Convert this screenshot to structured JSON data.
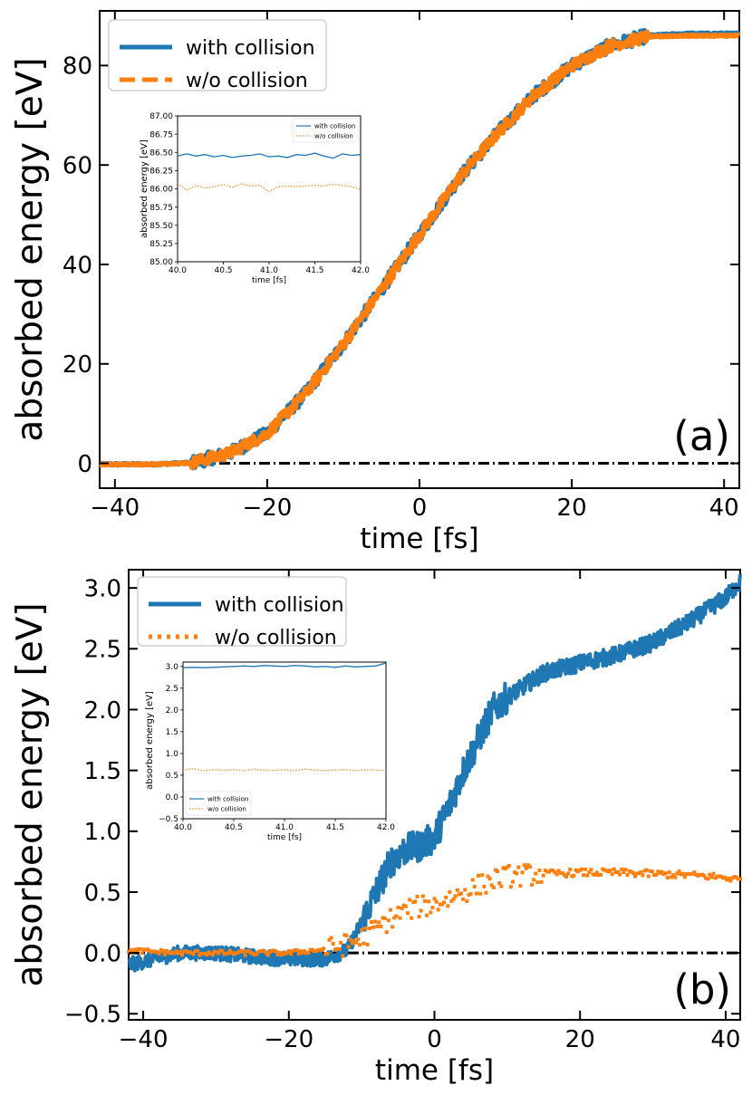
{
  "chart_data": [
    {
      "panel": "(a)",
      "type": "line",
      "xlabel": "time [fs]",
      "ylabel": "absorbed energy [eV]",
      "xlim": [
        -42,
        42
      ],
      "ylim": [
        -5,
        91
      ],
      "xticks": [
        -40,
        -20,
        0,
        20,
        40
      ],
      "xtick_labels": [
        "−40",
        "−20",
        "0",
        "20",
        "40"
      ],
      "yticks": [
        0,
        20,
        40,
        60,
        80
      ],
      "ytick_labels": [
        "0",
        "20",
        "40",
        "60",
        "80"
      ],
      "legend_position": "top-left",
      "series": [
        {
          "name": "with collision",
          "color": "#1f77b4",
          "style": "solid",
          "x": [
            -42,
            -35,
            -30,
            -25,
            -20,
            -15,
            -10,
            -5,
            0,
            5,
            10,
            15,
            20,
            25,
            30,
            35,
            42
          ],
          "y": [
            -0.2,
            -0.2,
            0.1,
            2,
            6,
            14,
            24,
            35,
            46,
            57,
            66,
            74,
            80,
            84,
            86,
            86.4,
            86.4
          ]
        },
        {
          "name": "w/o collision",
          "color": "#ff7f0e",
          "style": "dashed",
          "x": [
            -42,
            -35,
            -30,
            -25,
            -20,
            -15,
            -10,
            -5,
            0,
            5,
            10,
            15,
            20,
            25,
            30,
            35,
            42
          ],
          "y": [
            -0.2,
            -0.2,
            0.1,
            2,
            6,
            14,
            24,
            35,
            46,
            57,
            66,
            74,
            80,
            84,
            85.8,
            86,
            86
          ]
        }
      ],
      "reference_line": {
        "y": 0,
        "style": "dash-dot",
        "color": "#000000"
      },
      "inset": {
        "type": "line",
        "xlabel": "time [fs]",
        "ylabel": "absorbed energy [eV]",
        "xlim": [
          40,
          42
        ],
        "ylim": [
          85,
          87
        ],
        "xtick_labels": [
          "40.0",
          "40.5",
          "41.0",
          "41.5",
          "42.0"
        ],
        "ytick_labels": [
          "85.00",
          "85.25",
          "85.50",
          "85.75",
          "86.00",
          "86.25",
          "86.50",
          "86.75",
          "87.00"
        ],
        "legend_position": "top-right",
        "series": [
          {
            "name": "with collision",
            "color": "#1f77b4",
            "style": "solid",
            "x": [
              40.0,
              40.1,
              40.2,
              40.3,
              40.4,
              40.5,
              40.6,
              40.7,
              40.8,
              40.9,
              41.0,
              41.1,
              41.2,
              41.3,
              41.4,
              41.5,
              41.6,
              41.7,
              41.8,
              41.9,
              42.0
            ],
            "y": [
              86.45,
              86.48,
              86.45,
              86.47,
              86.44,
              86.46,
              86.43,
              86.45,
              86.46,
              86.48,
              86.44,
              86.45,
              86.43,
              86.47,
              86.46,
              86.49,
              86.45,
              86.42,
              86.48,
              86.46,
              86.47
            ]
          },
          {
            "name": "w/o collision",
            "color": "#ff7f0e",
            "style": "dotted",
            "x": [
              40.0,
              40.1,
              40.2,
              40.3,
              40.4,
              40.5,
              40.6,
              40.7,
              40.8,
              40.9,
              41.0,
              41.1,
              41.2,
              41.3,
              41.4,
              41.5,
              41.6,
              41.7,
              41.8,
              41.9,
              42.0
            ],
            "y": [
              86.08,
              85.98,
              86.05,
              86.01,
              86.03,
              86.06,
              86.02,
              86.07,
              86.04,
              86.05,
              85.96,
              86.03,
              86.04,
              86.03,
              86.04,
              86.05,
              86.04,
              86.06,
              86.05,
              86.03,
              85.99
            ]
          }
        ]
      }
    },
    {
      "panel": "(b)",
      "type": "line",
      "xlabel": "time [fs]",
      "ylabel": "absorbed energy [eV]",
      "xlim": [
        -42,
        42
      ],
      "ylim": [
        -0.55,
        3.15
      ],
      "xticks": [
        -40,
        -20,
        0,
        20,
        40
      ],
      "xtick_labels": [
        "−40",
        "−20",
        "0",
        "20",
        "40"
      ],
      "yticks": [
        -0.5,
        0,
        0.5,
        1,
        1.5,
        2,
        2.5,
        3
      ],
      "ytick_labels": [
        "−0.5",
        "0.0",
        "0.5",
        "1.0",
        "1.5",
        "2.0",
        "2.5",
        "3.0"
      ],
      "legend_position": "top-left",
      "series": [
        {
          "name": "with collision",
          "color": "#1f77b4",
          "style": "solid",
          "x": [
            -42,
            -35,
            -30,
            -25,
            -20,
            -15,
            -12,
            -10,
            -8,
            -6,
            -4,
            -2,
            0,
            2,
            4,
            6,
            8,
            10,
            15,
            20,
            25,
            30,
            35,
            40,
            42
          ],
          "y": [
            -0.1,
            0.0,
            0.0,
            -0.03,
            -0.05,
            -0.05,
            0.02,
            0.25,
            0.5,
            0.75,
            0.85,
            0.88,
            0.95,
            1.2,
            1.5,
            1.75,
            2.0,
            2.1,
            2.3,
            2.38,
            2.45,
            2.55,
            2.72,
            2.92,
            3.05
          ]
        },
        {
          "name": "w/o collision",
          "color": "#ff7f0e",
          "style": "dotted",
          "x": [
            -42,
            -35,
            -30,
            -25,
            -20,
            -15,
            -12,
            -10,
            -8,
            -6,
            -4,
            -2,
            0,
            2,
            4,
            6,
            8,
            10,
            15,
            20,
            25,
            30,
            35,
            40,
            42
          ],
          "y": [
            0.02,
            0.0,
            0.0,
            0.0,
            0.0,
            0.03,
            0.07,
            0.12,
            0.2,
            0.28,
            0.35,
            0.38,
            0.4,
            0.45,
            0.5,
            0.55,
            0.6,
            0.63,
            0.65,
            0.66,
            0.66,
            0.65,
            0.64,
            0.62,
            0.6
          ]
        }
      ],
      "reference_line": {
        "y": 0,
        "style": "dash-dot",
        "color": "#000000"
      },
      "inset": {
        "type": "line",
        "xlabel": "time [fs]",
        "ylabel": "absorbed energy [eV]",
        "xlim": [
          40,
          42
        ],
        "ylim": [
          -0.5,
          3.1
        ],
        "xtick_labels": [
          "40.0",
          "40.5",
          "41.0",
          "41.5",
          "42.0"
        ],
        "ytick_labels": [
          "−0.5",
          "0.0",
          "0.5",
          "1.0",
          "1.5",
          "2.0",
          "2.5",
          "3.0"
        ],
        "legend_position": "bottom-left",
        "series": [
          {
            "name": "with collision",
            "color": "#1f77b4",
            "style": "solid",
            "x": [
              40.0,
              40.1,
              40.2,
              40.3,
              40.4,
              40.5,
              40.6,
              40.7,
              40.8,
              40.9,
              41.0,
              41.1,
              41.2,
              41.3,
              41.4,
              41.5,
              41.6,
              41.7,
              41.8,
              41.9,
              42.0
            ],
            "y": [
              2.97,
              2.98,
              2.97,
              2.98,
              2.99,
              3.0,
              3.01,
              3.0,
              3.02,
              3.01,
              3.0,
              3.02,
              3.01,
              2.99,
              3.0,
              2.98,
              3.01,
              2.99,
              3.0,
              3.01,
              3.08
            ]
          },
          {
            "name": "w/o collision",
            "color": "#ff7f0e",
            "style": "dotted",
            "x": [
              40.0,
              40.1,
              40.2,
              40.3,
              40.4,
              40.5,
              40.6,
              40.7,
              40.8,
              40.9,
              41.0,
              41.1,
              41.2,
              41.3,
              41.4,
              41.5,
              41.6,
              41.7,
              41.8,
              41.9,
              42.0
            ],
            "y": [
              0.62,
              0.65,
              0.6,
              0.63,
              0.61,
              0.63,
              0.6,
              0.64,
              0.62,
              0.61,
              0.63,
              0.6,
              0.64,
              0.62,
              0.61,
              0.62,
              0.63,
              0.61,
              0.62,
              0.62,
              0.61
            ]
          }
        ]
      }
    }
  ]
}
